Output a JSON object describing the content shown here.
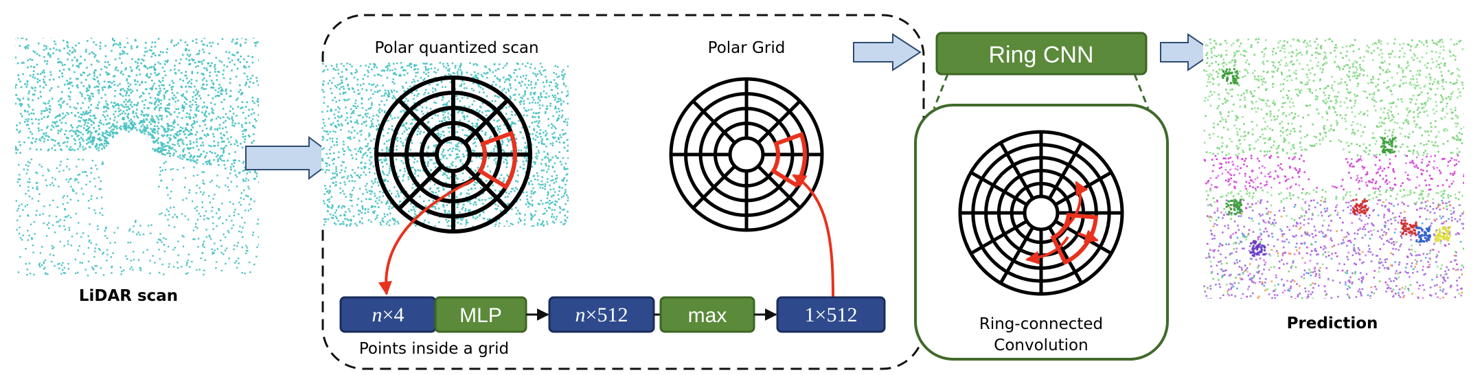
{
  "labels": {
    "lidar_scan": "LiDAR scan",
    "polar_quantized_scan": "Polar quantized scan",
    "polar_grid": "Polar Grid",
    "ring_cnn": "Ring CNN",
    "ring_connected_line1": "Ring-connected",
    "ring_connected_line2": "Convolution",
    "prediction": "Prediction",
    "points_inside_grid": "Points inside a grid"
  },
  "pipeline": {
    "n4_var": "n",
    "n4_rest": "×4",
    "mlp": "MLP",
    "n512_var": "n",
    "n512_rest": "×512",
    "max": "max",
    "one512": "1×512"
  },
  "colors": {
    "navy_box": "#2E4A8C",
    "green_box": "#5A8A3A",
    "red_highlight": "#E8321E",
    "lidar_teal": "#4EC3C3",
    "arrow_fill": "#C5D8EE",
    "arrow_stroke": "#2E4A70",
    "green_frame": "#3F6A2A"
  }
}
